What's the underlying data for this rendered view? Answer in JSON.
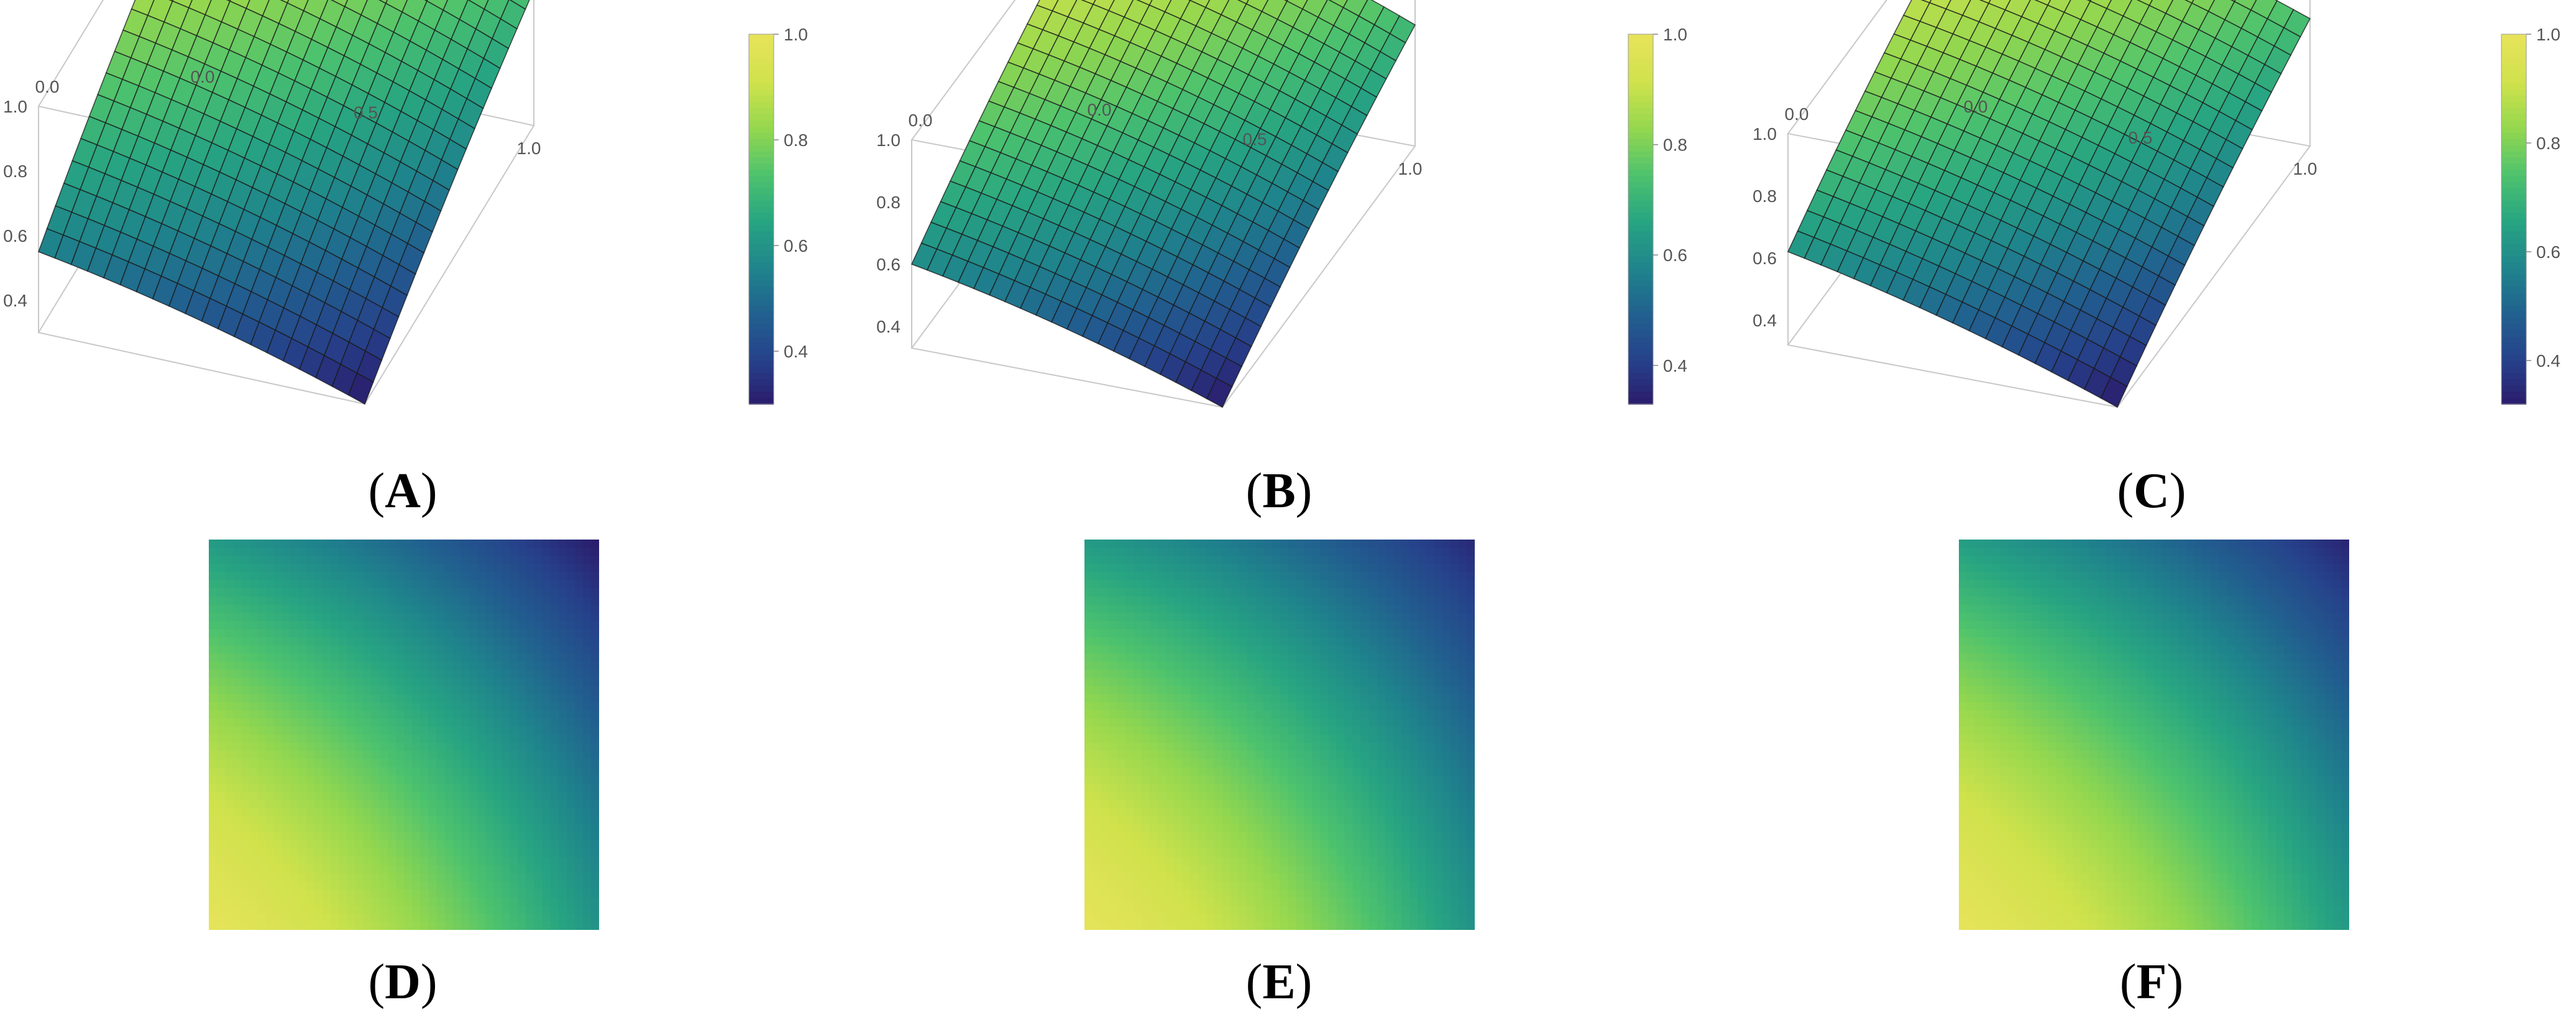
{
  "panels": [
    {
      "label": "A",
      "kind": "surface3d"
    },
    {
      "label": "B",
      "kind": "surface3d"
    },
    {
      "label": "C",
      "kind": "surface3d"
    },
    {
      "label": "D",
      "kind": "density"
    },
    {
      "label": "E",
      "kind": "density"
    },
    {
      "label": "F",
      "kind": "density"
    }
  ],
  "colormap": [
    "#2b1a6b",
    "#26418a",
    "#21608f",
    "#1f848c",
    "#27a482",
    "#4cc26e",
    "#93d74f",
    "#cfe24c",
    "#e6e35a"
  ],
  "chart_data": [
    {
      "type": "heatmap",
      "panel": "A",
      "title": "",
      "xlabel": "",
      "ylabel": "",
      "x_ticks": [
        "0.0",
        "0.5",
        "1.0"
      ],
      "y_ticks": [
        "0.0",
        "0.5",
        "1.0"
      ],
      "z_ticks": [
        "0.4",
        "0.6",
        "0.8",
        "1.0"
      ],
      "x_range": [
        0,
        1
      ],
      "y_range": [
        0,
        1
      ],
      "z_range": [
        0.3,
        1.0
      ],
      "colorbar_ticks": [
        "0.4",
        "0.6",
        "0.8",
        "1.0"
      ],
      "colorbar_range": [
        0.3,
        1.0
      ],
      "corner_values": {
        "x0_y0": 1.0,
        "x1_y0": 0.72,
        "x0_y1": 0.55,
        "x1_y1": 0.3
      }
    },
    {
      "type": "heatmap",
      "panel": "B",
      "title": "",
      "xlabel": "",
      "ylabel": "",
      "x_ticks": [
        "0.0",
        "0.5",
        "1.0"
      ],
      "y_ticks": [
        "0.0",
        "0.5",
        "1.0"
      ],
      "z_ticks": [
        "0.4",
        "0.6",
        "0.8",
        "1.0"
      ],
      "x_range": [
        0,
        1
      ],
      "y_range": [
        0,
        1
      ],
      "z_range": [
        0.33,
        1.0
      ],
      "colorbar_ticks": [
        "0.4",
        "0.6",
        "0.8",
        "1.0"
      ],
      "colorbar_range": [
        0.33,
        1.0
      ],
      "corner_values": {
        "x0_y0": 1.0,
        "x1_y0": 0.72,
        "x0_y1": 0.6,
        "x1_y1": 0.33
      }
    },
    {
      "type": "heatmap",
      "panel": "C",
      "title": "",
      "xlabel": "",
      "ylabel": "",
      "x_ticks": [
        "0.0",
        "0.5",
        "1.0"
      ],
      "y_ticks": [
        "0.0",
        "0.5",
        "1.0"
      ],
      "z_ticks": [
        "0.4",
        "0.6",
        "0.8",
        "1.0"
      ],
      "x_range": [
        0,
        1
      ],
      "y_range": [
        0,
        1
      ],
      "z_range": [
        0.32,
        1.0
      ],
      "colorbar_ticks": [
        "0.4",
        "0.6",
        "0.8",
        "1.0"
      ],
      "colorbar_range": [
        0.32,
        1.0
      ],
      "corner_values": {
        "x0_y0": 1.0,
        "x1_y0": 0.73,
        "x0_y1": 0.62,
        "x1_y1": 0.32
      }
    },
    {
      "type": "heatmap",
      "panel": "D",
      "title": "",
      "x_range": [
        0,
        1
      ],
      "y_range": [
        0,
        1
      ],
      "corner_values": {
        "bottom_left": 1.0,
        "top_left": 0.62,
        "bottom_right": 0.6,
        "top_right": 0.3
      }
    },
    {
      "type": "heatmap",
      "panel": "E",
      "title": "",
      "x_range": [
        0,
        1
      ],
      "y_range": [
        0,
        1
      ],
      "corner_values": {
        "bottom_left": 1.0,
        "top_left": 0.62,
        "bottom_right": 0.6,
        "top_right": 0.33
      }
    },
    {
      "type": "heatmap",
      "panel": "F",
      "title": "",
      "x_range": [
        0,
        1
      ],
      "y_range": [
        0,
        1
      ],
      "corner_values": {
        "bottom_left": 1.0,
        "top_left": 0.63,
        "bottom_right": 0.62,
        "top_right": 0.32
      }
    }
  ]
}
